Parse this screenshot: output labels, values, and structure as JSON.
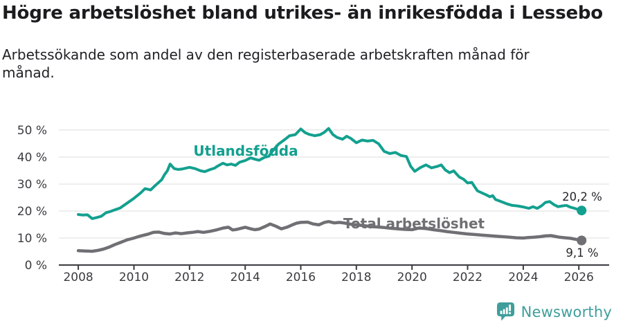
{
  "header": {
    "title": "Högre arbetslöshet bland utrikes- än inrikesfödda i Lessebo",
    "subtitle": "Arbetssökande som andel av den registerbaserade arbetskraften månad för månad."
  },
  "footer": {
    "brand": "Newsworthy",
    "brand_color": "#3f9e9b",
    "icon": "newsworthy-speech-bubble-bar-chart-icon"
  },
  "chart_data": {
    "type": "line",
    "unit": "%",
    "grid": true,
    "legend_position": "inline-labels",
    "xlim": [
      2007.3,
      2027.09
    ],
    "ylim": [
      0,
      54.6
    ],
    "x_ticks": [
      2008,
      2010,
      2012,
      2014,
      2016,
      2018,
      2020,
      2022,
      2024,
      2026
    ],
    "x_tick_labels": [
      "2008",
      "2010",
      "2012",
      "2014",
      "2016",
      "2018",
      "2020",
      "2022",
      "2024",
      "2026"
    ],
    "y_ticks": [
      0,
      10,
      20,
      30,
      40,
      50
    ],
    "y_tick_labels": [
      "0 %",
      "10 %",
      "20 %",
      "30 %",
      "40 %",
      "50 %"
    ],
    "grid_color": "#dcdcdc",
    "axis_color": "#3b3b40",
    "series": [
      {
        "id": "utlandsfodda",
        "name": "Utlandsfödda",
        "color": "#13a08f",
        "width": 4,
        "end_dot": true,
        "end_value_label": "20,2 %",
        "points": [
          [
            2008.0,
            18.7
          ],
          [
            2008.17,
            18.5
          ],
          [
            2008.33,
            18.6
          ],
          [
            2008.5,
            17.2
          ],
          [
            2008.67,
            17.6
          ],
          [
            2008.83,
            18.1
          ],
          [
            2009.0,
            19.4
          ],
          [
            2009.17,
            19.9
          ],
          [
            2009.33,
            20.5
          ],
          [
            2009.5,
            21.1
          ],
          [
            2009.75,
            22.9
          ],
          [
            2010.0,
            24.7
          ],
          [
            2010.25,
            26.8
          ],
          [
            2010.4,
            28.3
          ],
          [
            2010.6,
            27.8
          ],
          [
            2010.75,
            29.3
          ],
          [
            2011.0,
            31.6
          ],
          [
            2011.1,
            33.5
          ],
          [
            2011.2,
            34.9
          ],
          [
            2011.3,
            37.4
          ],
          [
            2011.45,
            35.7
          ],
          [
            2011.6,
            35.4
          ],
          [
            2011.75,
            35.6
          ],
          [
            2012.0,
            36.2
          ],
          [
            2012.2,
            35.7
          ],
          [
            2012.4,
            34.9
          ],
          [
            2012.55,
            34.6
          ],
          [
            2012.75,
            35.4
          ],
          [
            2012.9,
            35.9
          ],
          [
            2013.0,
            36.6
          ],
          [
            2013.2,
            37.7
          ],
          [
            2013.35,
            37.1
          ],
          [
            2013.5,
            37.4
          ],
          [
            2013.65,
            36.9
          ],
          [
            2013.8,
            38.1
          ],
          [
            2014.0,
            38.7
          ],
          [
            2014.2,
            39.7
          ],
          [
            2014.35,
            39.2
          ],
          [
            2014.5,
            38.8
          ],
          [
            2014.7,
            39.9
          ],
          [
            2014.85,
            40.3
          ],
          [
            2015.0,
            42.4
          ],
          [
            2015.2,
            44.8
          ],
          [
            2015.4,
            46.3
          ],
          [
            2015.6,
            47.9
          ],
          [
            2015.8,
            48.3
          ],
          [
            2016.0,
            50.4
          ],
          [
            2016.15,
            49.1
          ],
          [
            2016.3,
            48.4
          ],
          [
            2016.5,
            47.9
          ],
          [
            2016.7,
            48.3
          ],
          [
            2016.85,
            49.2
          ],
          [
            2017.0,
            50.6
          ],
          [
            2017.15,
            48.4
          ],
          [
            2017.3,
            47.3
          ],
          [
            2017.5,
            46.6
          ],
          [
            2017.65,
            47.7
          ],
          [
            2017.8,
            46.9
          ],
          [
            2018.0,
            45.3
          ],
          [
            2018.2,
            46.3
          ],
          [
            2018.4,
            45.9
          ],
          [
            2018.6,
            46.2
          ],
          [
            2018.8,
            44.9
          ],
          [
            2019.0,
            42.1
          ],
          [
            2019.2,
            41.3
          ],
          [
            2019.4,
            41.7
          ],
          [
            2019.6,
            40.6
          ],
          [
            2019.8,
            40.2
          ],
          [
            2019.95,
            36.6
          ],
          [
            2020.1,
            34.7
          ],
          [
            2020.3,
            36.1
          ],
          [
            2020.5,
            37.1
          ],
          [
            2020.7,
            36.0
          ],
          [
            2020.9,
            36.5
          ],
          [
            2021.05,
            37.1
          ],
          [
            2021.2,
            35.2
          ],
          [
            2021.35,
            34.2
          ],
          [
            2021.5,
            34.9
          ],
          [
            2021.7,
            32.6
          ],
          [
            2021.85,
            31.8
          ],
          [
            2022.0,
            30.4
          ],
          [
            2022.15,
            30.6
          ],
          [
            2022.35,
            27.5
          ],
          [
            2022.5,
            26.8
          ],
          [
            2022.65,
            26.1
          ],
          [
            2022.8,
            25.3
          ],
          [
            2022.9,
            25.7
          ],
          [
            2023.0,
            24.3
          ],
          [
            2023.2,
            23.5
          ],
          [
            2023.4,
            22.7
          ],
          [
            2023.6,
            22.1
          ],
          [
            2023.8,
            21.9
          ],
          [
            2024.0,
            21.5
          ],
          [
            2024.2,
            21.0
          ],
          [
            2024.35,
            21.6
          ],
          [
            2024.5,
            21.0
          ],
          [
            2024.65,
            21.9
          ],
          [
            2024.8,
            23.2
          ],
          [
            2024.95,
            23.5
          ],
          [
            2025.1,
            22.4
          ],
          [
            2025.25,
            21.6
          ],
          [
            2025.4,
            21.9
          ],
          [
            2025.55,
            22.1
          ],
          [
            2025.7,
            21.4
          ],
          [
            2025.85,
            21.0
          ],
          [
            2026.0,
            20.5
          ],
          [
            2026.1,
            20.2
          ]
        ]
      },
      {
        "id": "total-arbetsloshet",
        "name": "Total arbetslöshet",
        "color": "#6f6f74",
        "width": 4.5,
        "end_dot": true,
        "end_value_label": "9,1 %",
        "points": [
          [
            2008.0,
            5.3
          ],
          [
            2008.25,
            5.2
          ],
          [
            2008.5,
            5.1
          ],
          [
            2008.7,
            5.4
          ],
          [
            2008.9,
            5.9
          ],
          [
            2009.1,
            6.6
          ],
          [
            2009.3,
            7.5
          ],
          [
            2009.5,
            8.3
          ],
          [
            2009.75,
            9.3
          ],
          [
            2010.0,
            10.0
          ],
          [
            2010.25,
            10.8
          ],
          [
            2010.5,
            11.4
          ],
          [
            2010.7,
            12.1
          ],
          [
            2010.9,
            12.2
          ],
          [
            2011.1,
            11.7
          ],
          [
            2011.3,
            11.5
          ],
          [
            2011.5,
            11.9
          ],
          [
            2011.7,
            11.6
          ],
          [
            2011.9,
            11.9
          ],
          [
            2012.1,
            12.1
          ],
          [
            2012.3,
            12.4
          ],
          [
            2012.5,
            12.1
          ],
          [
            2012.75,
            12.5
          ],
          [
            2013.0,
            13.1
          ],
          [
            2013.2,
            13.7
          ],
          [
            2013.4,
            14.0
          ],
          [
            2013.55,
            13.0
          ],
          [
            2013.7,
            13.2
          ],
          [
            2013.85,
            13.6
          ],
          [
            2014.0,
            14.0
          ],
          [
            2014.2,
            13.4
          ],
          [
            2014.35,
            13.1
          ],
          [
            2014.5,
            13.3
          ],
          [
            2014.7,
            14.2
          ],
          [
            2014.9,
            15.2
          ],
          [
            2015.1,
            14.4
          ],
          [
            2015.3,
            13.4
          ],
          [
            2015.5,
            14.0
          ],
          [
            2015.7,
            14.9
          ],
          [
            2015.85,
            15.5
          ],
          [
            2016.0,
            15.8
          ],
          [
            2016.25,
            15.9
          ],
          [
            2016.45,
            15.2
          ],
          [
            2016.65,
            14.9
          ],
          [
            2016.85,
            15.8
          ],
          [
            2017.0,
            16.1
          ],
          [
            2017.2,
            15.6
          ],
          [
            2017.4,
            15.8
          ],
          [
            2017.6,
            15.5
          ],
          [
            2017.8,
            15.1
          ],
          [
            2018.0,
            14.9
          ],
          [
            2018.25,
            14.6
          ],
          [
            2018.5,
            14.3
          ],
          [
            2018.75,
            14.1
          ],
          [
            2019.0,
            13.9
          ],
          [
            2019.25,
            13.6
          ],
          [
            2019.5,
            13.4
          ],
          [
            2019.75,
            13.2
          ],
          [
            2020.0,
            13.1
          ],
          [
            2020.25,
            13.7
          ],
          [
            2020.5,
            13.5
          ],
          [
            2020.75,
            13.1
          ],
          [
            2021.0,
            12.8
          ],
          [
            2021.25,
            12.4
          ],
          [
            2021.5,
            12.1
          ],
          [
            2021.75,
            11.8
          ],
          [
            2022.0,
            11.5
          ],
          [
            2022.25,
            11.3
          ],
          [
            2022.5,
            11.1
          ],
          [
            2022.75,
            10.9
          ],
          [
            2023.0,
            10.7
          ],
          [
            2023.25,
            10.5
          ],
          [
            2023.5,
            10.3
          ],
          [
            2023.75,
            10.1
          ],
          [
            2024.0,
            10.0
          ],
          [
            2024.2,
            10.2
          ],
          [
            2024.4,
            10.3
          ],
          [
            2024.6,
            10.5
          ],
          [
            2024.8,
            10.8
          ],
          [
            2025.0,
            10.9
          ],
          [
            2025.15,
            10.6
          ],
          [
            2025.3,
            10.3
          ],
          [
            2025.5,
            10.1
          ],
          [
            2025.7,
            9.9
          ],
          [
            2025.85,
            9.6
          ],
          [
            2026.0,
            9.3
          ],
          [
            2026.1,
            9.1
          ]
        ]
      }
    ],
    "annotations": [
      {
        "id": "series-label-utlandsfodda",
        "text": "Utlandsfödda",
        "x": 2014.02,
        "y": 40.5,
        "color": "#13a08f",
        "bold": true,
        "size": 20,
        "anchor": "middle"
      },
      {
        "id": "series-label-total-arbetsloshet",
        "text": "Total arbetslöshet",
        "x": 2020.07,
        "y": 13.6,
        "color": "#6f6f74",
        "bold": true,
        "size": 20,
        "anchor": "middle"
      },
      {
        "id": "end-value-label-utlandsfodda",
        "text": "20,2 %",
        "x": 2026.12,
        "y": 23.8,
        "color": "#26262a",
        "bold": false,
        "size": 16.5,
        "anchor": "middle"
      },
      {
        "id": "end-value-label-total-arbetsloshet",
        "text": "9,1 %",
        "x": 2026.12,
        "y": 3.1,
        "color": "#26262a",
        "bold": false,
        "size": 16.5,
        "anchor": "middle"
      }
    ]
  }
}
